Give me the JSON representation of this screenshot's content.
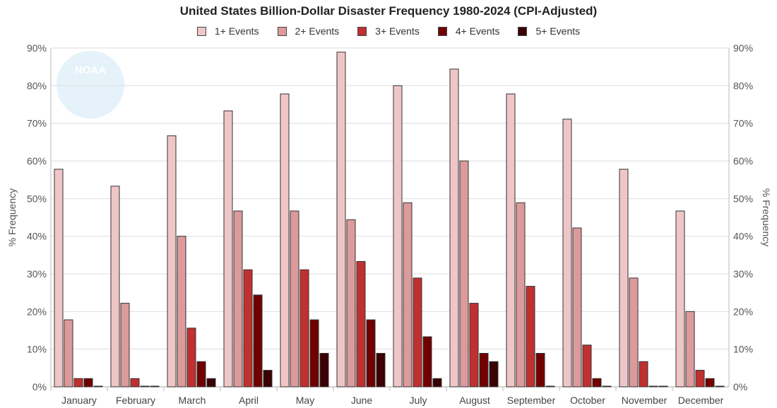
{
  "chart_data": {
    "type": "bar",
    "title": "United States Billion-Dollar Disaster Frequency 1980-2024 (CPI-Adjusted)",
    "ylabel": "% Frequency",
    "ylabel_right": "% Frequency",
    "ylim": [
      0,
      90
    ],
    "yticks": [
      "0%",
      "10%",
      "20%",
      "30%",
      "40%",
      "50%",
      "60%",
      "70%",
      "80%",
      "90%"
    ],
    "grid": true,
    "legend_position": "top",
    "categories": [
      "January",
      "February",
      "March",
      "April",
      "May",
      "June",
      "July",
      "August",
      "September",
      "October",
      "November",
      "December"
    ],
    "series": [
      {
        "name": "1+ Events",
        "color": "#efc6c7",
        "values": [
          57.8,
          53.3,
          66.7,
          73.3,
          77.8,
          88.9,
          80.0,
          84.4,
          77.8,
          71.1,
          57.8,
          46.7
        ]
      },
      {
        "name": "2+ Events",
        "color": "#dc9a9b",
        "values": [
          17.8,
          22.2,
          40.0,
          46.7,
          46.7,
          44.4,
          48.9,
          60.0,
          48.9,
          42.2,
          28.9,
          20.0
        ]
      },
      {
        "name": "3+ Events",
        "color": "#c0302f",
        "values": [
          2.2,
          2.2,
          15.6,
          31.1,
          31.1,
          33.3,
          28.9,
          22.2,
          26.7,
          11.1,
          6.7,
          4.4
        ]
      },
      {
        "name": "4+ Events",
        "color": "#720000",
        "values": [
          2.2,
          0,
          6.7,
          24.4,
          17.8,
          17.8,
          13.3,
          8.9,
          8.9,
          2.2,
          0,
          2.2
        ]
      },
      {
        "name": "5+ Events",
        "color": "#3a0003",
        "values": [
          0,
          0,
          2.2,
          4.4,
          8.9,
          8.9,
          2.2,
          6.7,
          0,
          0,
          0,
          0
        ]
      }
    ],
    "watermark": "NOAA"
  }
}
